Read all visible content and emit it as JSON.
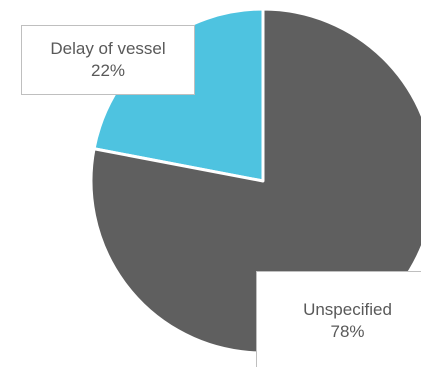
{
  "chart_data": {
    "type": "pie",
    "title": "",
    "slices": [
      {
        "label": "Delay of vessel",
        "value": 22,
        "value_label": "22%",
        "color": "#4ec3e0"
      },
      {
        "label": "Unspecified",
        "value": 78,
        "value_label": "78%",
        "color": "#5f5f5f"
      }
    ],
    "legend": "none",
    "data_labels": "callouts"
  }
}
